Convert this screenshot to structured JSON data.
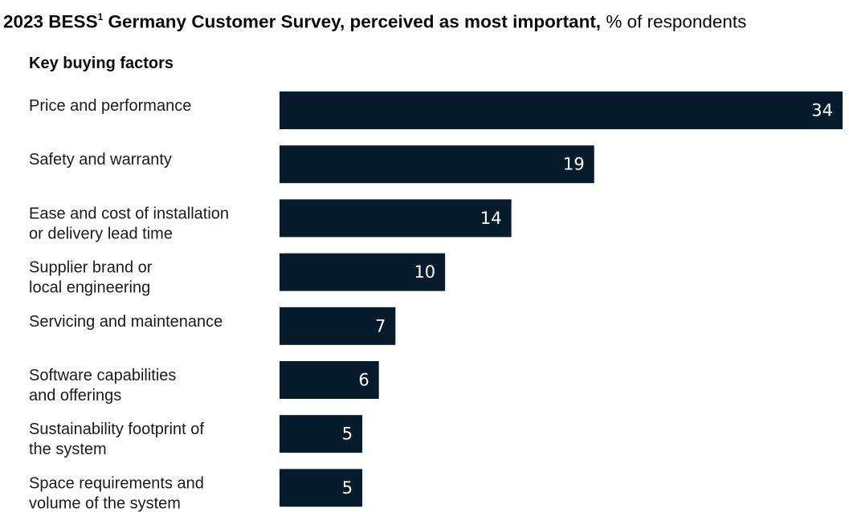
{
  "title": {
    "lead": "2023 BESS",
    "footnote_mark": "1",
    "rest": " Germany Customer Survey, perceived as most important,",
    "unit": " % of respondents"
  },
  "subheading": "Key buying factors",
  "colors": {
    "bar": "#061c2d",
    "bar_label": "#ffffff",
    "text": "#1a1a1a"
  },
  "chart_data": {
    "type": "bar",
    "orientation": "horizontal",
    "title": "2023 BESS1 Germany Customer Survey, perceived as most important, % of respondents",
    "xlabel": "",
    "ylabel": "Key buying factors",
    "grid": false,
    "categories": [
      [
        "Price and performance"
      ],
      [
        "Safety and warranty"
      ],
      [
        "Ease and cost of installation",
        "or delivery lead time"
      ],
      [
        "Supplier brand or",
        "local engineering"
      ],
      [
        "Servicing and maintenance"
      ],
      [
        "Software capabilities",
        "and offerings"
      ],
      [
        "Sustainability footprint of",
        "the system"
      ],
      [
        "Space requirements and",
        "volume of the system"
      ]
    ],
    "values": [
      34,
      19,
      14,
      10,
      7,
      6,
      5,
      5
    ],
    "xlim": [
      0,
      34
    ]
  }
}
